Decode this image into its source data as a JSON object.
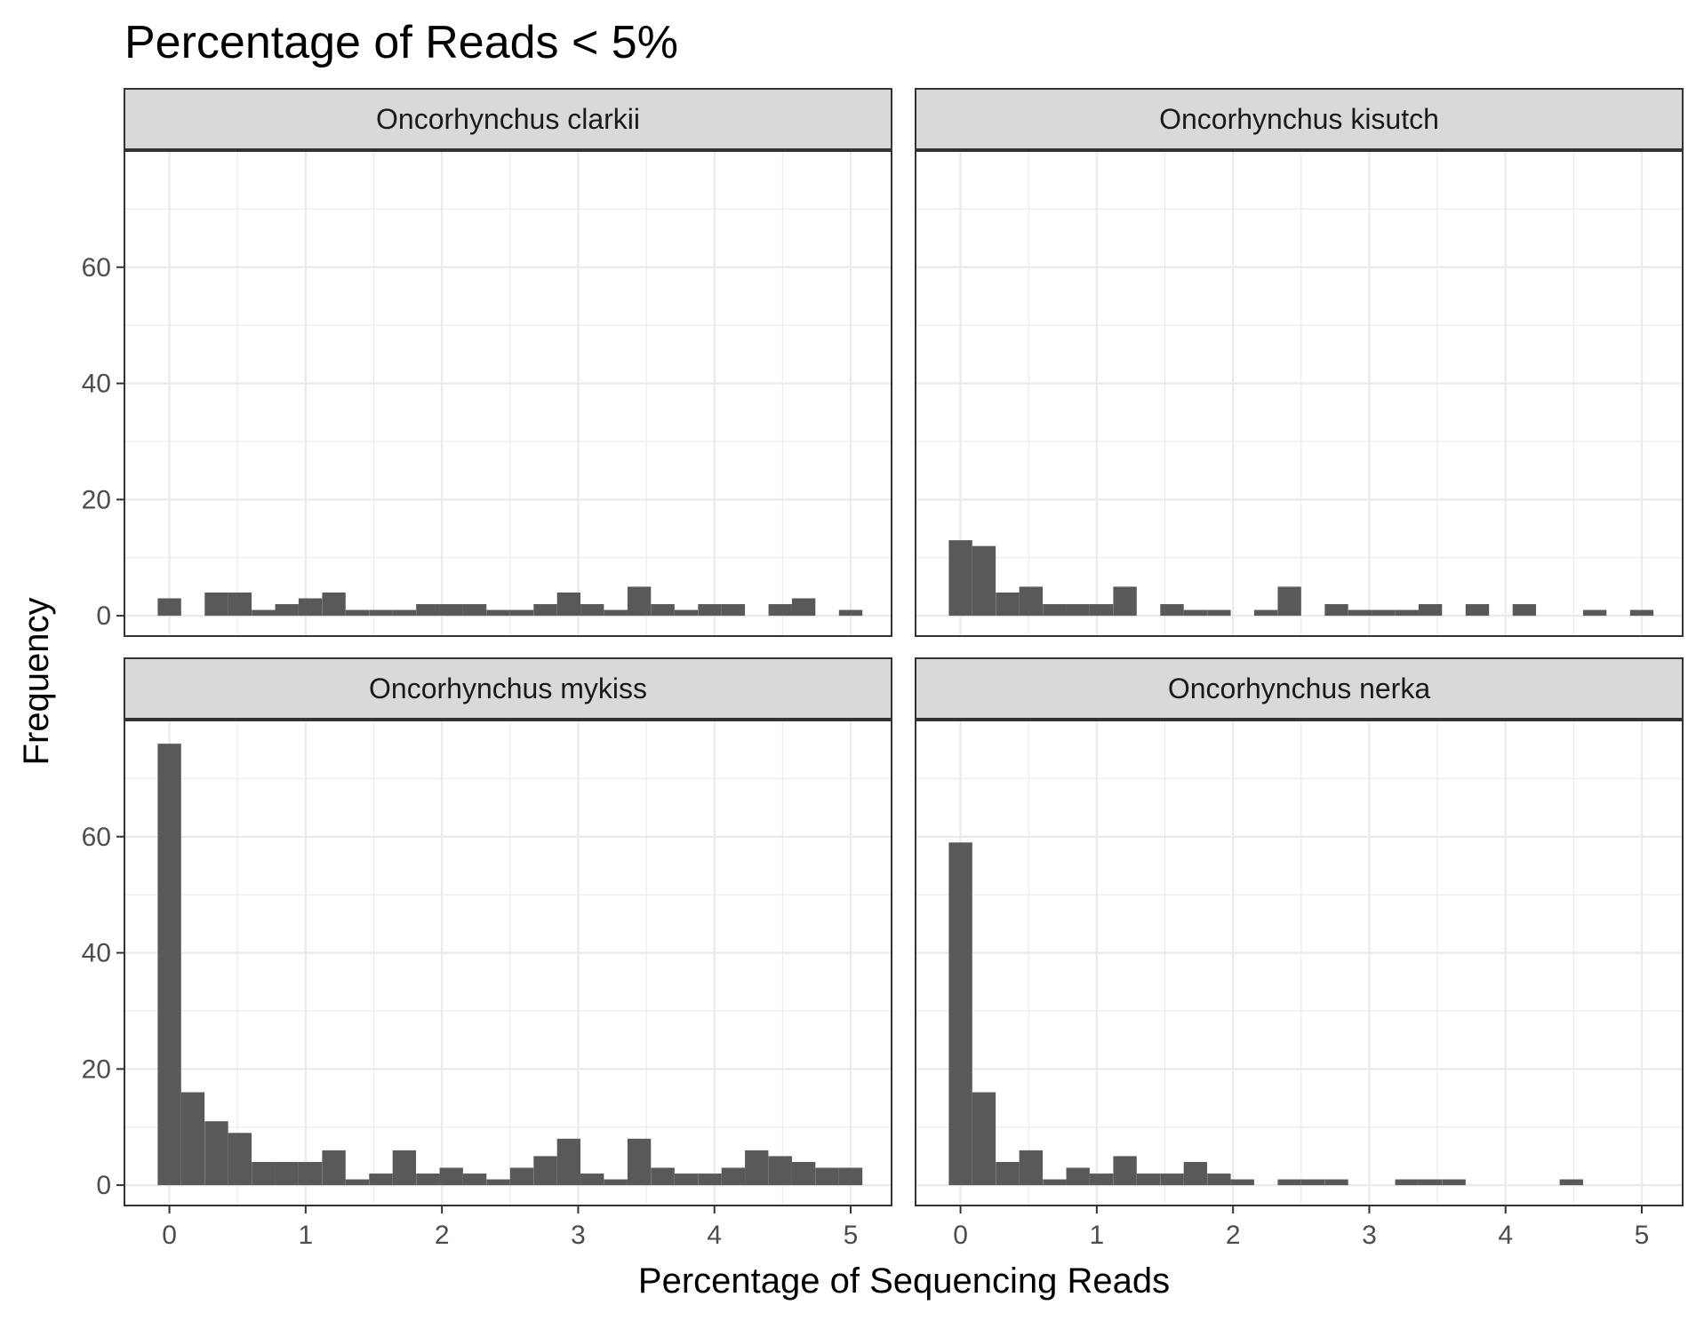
{
  "chart_data": {
    "type": "bar",
    "title": "Percentage of Reads < 5%",
    "xlabel": "Percentage of Sequencing Reads",
    "ylabel": "Frequency",
    "xlim": [
      -0.33,
      5.3
    ],
    "ylim": [
      -3.5,
      80
    ],
    "x_ticks": [
      0,
      1,
      2,
      3,
      4,
      5
    ],
    "y_ticks": [
      0,
      20,
      40,
      60
    ],
    "grid": true,
    "bin_width": 0.172,
    "bar_color": "#595959",
    "panels": [
      {
        "name": "Oncorhynchus clarkii",
        "x": [
          0,
          0.172,
          0.345,
          0.517,
          0.69,
          0.862,
          1.034,
          1.207,
          1.379,
          1.552,
          1.724,
          1.897,
          2.069,
          2.241,
          2.414,
          2.586,
          2.759,
          2.931,
          3.103,
          3.276,
          3.448,
          3.621,
          3.793,
          3.966,
          4.138,
          4.31,
          4.483,
          4.655,
          4.828,
          5.0
        ],
        "values": [
          3,
          0,
          4,
          4,
          1,
          2,
          3,
          4,
          1,
          1,
          1,
          2,
          2,
          2,
          1,
          1,
          2,
          4,
          2,
          1,
          5,
          2,
          1,
          2,
          2,
          0,
          2,
          3,
          0,
          1
        ]
      },
      {
        "name": "Oncorhynchus kisutch",
        "x": [
          0,
          0.172,
          0.345,
          0.517,
          0.69,
          0.862,
          1.034,
          1.207,
          1.379,
          1.552,
          1.724,
          1.897,
          2.069,
          2.241,
          2.414,
          2.586,
          2.759,
          2.931,
          3.103,
          3.276,
          3.448,
          3.621,
          3.793,
          3.966,
          4.138,
          4.31,
          4.483,
          4.655,
          4.828,
          5.0
        ],
        "values": [
          13,
          12,
          4,
          5,
          2,
          2,
          2,
          5,
          0,
          2,
          1,
          1,
          0,
          1,
          5,
          0,
          2,
          1,
          1,
          1,
          2,
          0,
          2,
          0,
          2,
          0,
          0,
          1,
          0,
          1
        ]
      },
      {
        "name": "Oncorhynchus mykiss",
        "x": [
          0,
          0.172,
          0.345,
          0.517,
          0.69,
          0.862,
          1.034,
          1.207,
          1.379,
          1.552,
          1.724,
          1.897,
          2.069,
          2.241,
          2.414,
          2.586,
          2.759,
          2.931,
          3.103,
          3.276,
          3.448,
          3.621,
          3.793,
          3.966,
          4.138,
          4.31,
          4.483,
          4.655,
          4.828,
          5.0
        ],
        "values": [
          76,
          16,
          11,
          9,
          4,
          4,
          4,
          6,
          1,
          2,
          6,
          2,
          3,
          2,
          1,
          3,
          5,
          8,
          2,
          1,
          8,
          3,
          2,
          2,
          3,
          6,
          5,
          4,
          3,
          3
        ]
      },
      {
        "name": "Oncorhynchus nerka",
        "x": [
          0,
          0.172,
          0.345,
          0.517,
          0.69,
          0.862,
          1.034,
          1.207,
          1.379,
          1.552,
          1.724,
          1.897,
          2.069,
          2.241,
          2.414,
          2.586,
          2.759,
          2.931,
          3.103,
          3.276,
          3.448,
          3.621,
          3.793,
          3.966,
          4.138,
          4.31,
          4.483,
          4.655,
          4.828,
          5.0
        ],
        "values": [
          59,
          16,
          4,
          6,
          1,
          3,
          2,
          5,
          2,
          2,
          4,
          2,
          1,
          0,
          1,
          1,
          1,
          0,
          0,
          1,
          1,
          1,
          0,
          0,
          0,
          0,
          1,
          0,
          0,
          0
        ]
      }
    ]
  }
}
